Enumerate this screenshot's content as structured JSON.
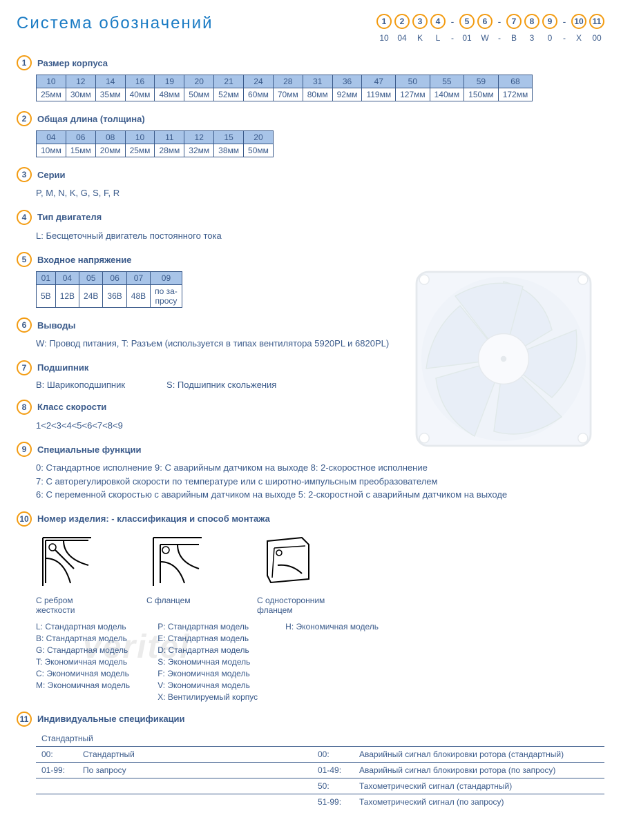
{
  "title": "Система обозначений",
  "colors": {
    "accent": "#1a7bc4",
    "badge_border": "#f39c12",
    "text": "#3a5a8a",
    "table_header_bg": "#a8c4e8",
    "border": "#3a5a8a"
  },
  "code_positions": [
    {
      "n": "1",
      "v": "10"
    },
    {
      "n": "2",
      "v": "04"
    },
    {
      "n": "3",
      "v": "K"
    },
    {
      "n": "4",
      "v": "L"
    },
    {
      "dash": true
    },
    {
      "n": "5",
      "v": "01"
    },
    {
      "n": "6",
      "v": "W"
    },
    {
      "dash": true
    },
    {
      "n": "7",
      "v": "B"
    },
    {
      "n": "8",
      "v": "3"
    },
    {
      "n": "9",
      "v": "0"
    },
    {
      "dash": true
    },
    {
      "n": "10",
      "v": "X"
    },
    {
      "n": "11",
      "v": "00"
    }
  ],
  "sections": {
    "s1": {
      "title": "Размер корпуса",
      "codes": [
        "10",
        "12",
        "14",
        "16",
        "19",
        "20",
        "21",
        "24",
        "28",
        "31",
        "36",
        "47",
        "50",
        "55",
        "59",
        "68"
      ],
      "vals": [
        "25мм",
        "30мм",
        "35мм",
        "40мм",
        "48мм",
        "50мм",
        "52мм",
        "60мм",
        "70мм",
        "80мм",
        "92мм",
        "119мм",
        "127мм",
        "140мм",
        "150мм",
        "172мм"
      ]
    },
    "s2": {
      "title": "Общая длина (толщина)",
      "codes": [
        "04",
        "06",
        "08",
        "10",
        "11",
        "12",
        "15",
        "20"
      ],
      "vals": [
        "10мм",
        "15мм",
        "20мм",
        "25мм",
        "28мм",
        "32мм",
        "38мм",
        "50мм"
      ]
    },
    "s3": {
      "title": "Серии",
      "text": "P, M, N, K, G, S, F, R"
    },
    "s4": {
      "title": "Тип двигателя",
      "text": "L: Бесщеточный двигатель постоянного тока"
    },
    "s5": {
      "title": "Входное напряжение",
      "codes": [
        "01",
        "04",
        "05",
        "06",
        "07",
        "09"
      ],
      "vals": [
        "5В",
        "12В",
        "24В",
        "36В",
        "48В",
        "по за-\nпросу"
      ]
    },
    "s6": {
      "title": "Выводы",
      "text": "W: Провод питания, T: Разъем (используется в типах вентилятора  5920PL и 6820PL)"
    },
    "s7": {
      "title": "Подшипник",
      "left": "B: Шарикоподшипник",
      "right": "S: Подшипник скольжения"
    },
    "s8": {
      "title": "Класс скорости",
      "text": "1<2<3<4<5<6<7<8<9"
    },
    "s9": {
      "title": "Специальные функции",
      "lines": [
        "0: Стандартное исполнение   9: С аварийным датчиком на выходе   8: 2-скоростное исполнение",
        "7: С авторегулировкой скорости по температуре или с широтно-импульсным преобразователем",
        "6: С переменной скоростью с аварийным датчиком на выходе   5: 2-скоростной с аварийным датчиком на выходе"
      ]
    },
    "s10": {
      "title": "Номер изделия: - классификация  и способ монтажа",
      "mounts": [
        {
          "cap": "С ребром\nжесткости"
        },
        {
          "cap": "С фланцем"
        },
        {
          "cap": "С односторонним\nфланцем"
        }
      ],
      "col1": [
        "L:  Стандартная модель",
        "B:  Стандартная модель",
        "G:  Стандартная модель",
        "T:  Экономичная модель",
        "C:  Экономичная модель",
        "M:  Экономичная модель"
      ],
      "col2": [
        "P:  Стандартная модель",
        "E:  Стандартная модель",
        "D:  Стандартная модель",
        "S:  Экономичная модель",
        "F:  Экономичная модель",
        "V:  Экономичная модель",
        "X:  Вентилируемый корпус"
      ],
      "col3": [
        "H:  Экономичная модель"
      ]
    },
    "s11": {
      "title": "Индивидуальные спецификации",
      "header": "Стандартный",
      "rows": [
        {
          "a": "00:",
          "b": "Стандартный",
          "c": "00:",
          "d": "Аварийный сигнал блокировки ротора (стандартный)"
        },
        {
          "a": "01-99:",
          "b": "По запросу",
          "c": "01-49:",
          "d": "Аварийный сигнал блокировки ротора (по запросу)"
        },
        {
          "a": "",
          "b": "",
          "c": "50:",
          "d": "Тахометрический сигнал (стандартный)"
        },
        {
          "a": "",
          "b": "",
          "c": "51-99:",
          "d": "Тахометрический сигнал (по запросу)"
        }
      ]
    }
  },
  "watermark": "veritel"
}
